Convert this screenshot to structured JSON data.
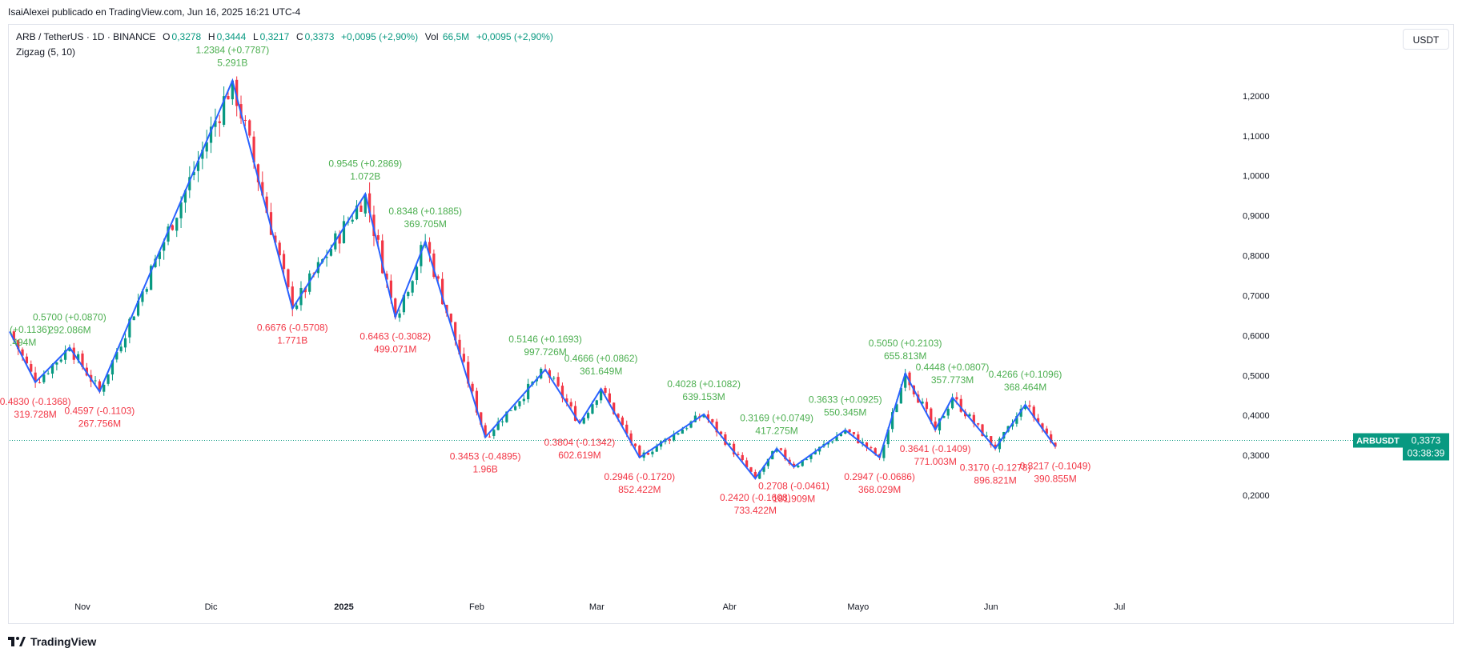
{
  "header": {
    "published": "IsaiAlexei publicado en TradingView.com, Jun 16, 2025 16:21 UTC-4",
    "symbol": "ARB / TetherUS · 1D · BINANCE",
    "o_label": "O",
    "o_value": "0,3278",
    "h_label": "H",
    "h_value": "0,3444",
    "l_label": "L",
    "l_value": "0,3217",
    "c_label": "C",
    "c_value": "0,3373",
    "change": "+0,0095 (+2,90%)",
    "vol_label": "Vol",
    "vol_value": "66,5M",
    "vol_change": "+0,0095 (+2,90%)",
    "indicator": "Zigzag (5, 10)",
    "currency": "USDT"
  },
  "price_tag": {
    "symbol": "ARBUSDT",
    "price": "0,3373",
    "countdown": "03:38:39"
  },
  "brand": "TradingView",
  "colors": {
    "up": "#089981",
    "down": "#f23645",
    "zigzag": "#2962ff",
    "label_up": "#4caf50",
    "label_down": "#f23645"
  },
  "chart_data": {
    "type": "candlestick",
    "ylim": [
      0.15,
      1.3
    ],
    "y_ticks": [
      {
        "value": 0.2,
        "label": "0,2000"
      },
      {
        "value": 0.3,
        "label": "0,3000"
      },
      {
        "value": 0.4,
        "label": "0,4000"
      },
      {
        "value": 0.5,
        "label": "0,5000"
      },
      {
        "value": 0.6,
        "label": "0,6000"
      },
      {
        "value": 0.7,
        "label": "0,7000"
      },
      {
        "value": 0.8,
        "label": "0,8000"
      },
      {
        "value": 0.9,
        "label": "0,9000"
      },
      {
        "value": 1.0,
        "label": "1,0000"
      },
      {
        "value": 1.1,
        "label": "1,1000"
      },
      {
        "value": 1.2,
        "label": "1,2000"
      }
    ],
    "x_range": [
      "2024-10-15",
      "2025-07-20"
    ],
    "x_ticks": [
      {
        "date": "2024-11-01",
        "label": "Nov"
      },
      {
        "date": "2024-12-01",
        "label": "Dic"
      },
      {
        "date": "2025-01-01",
        "label": "2025"
      },
      {
        "date": "2025-02-01",
        "label": "Feb"
      },
      {
        "date": "2025-03-01",
        "label": "Mar"
      },
      {
        "date": "2025-04-01",
        "label": "Abr"
      },
      {
        "date": "2025-05-01",
        "label": "Mayo"
      },
      {
        "date": "2025-06-01",
        "label": "Jun"
      },
      {
        "date": "2025-07-01",
        "label": "Jul"
      }
    ],
    "last_price": 0.3373,
    "zigzag": [
      {
        "date": "2024-10-15",
        "price": 0.61
      },
      {
        "date": "2024-10-21",
        "price": 0.483,
        "label": "0.4830 (-0.1368)",
        "volume": "319.728M",
        "dir": "down"
      },
      {
        "date": "2024-10-29",
        "price": 0.57,
        "label": "0.5700 (+0.0870)",
        "volume": "292.086M",
        "dir": "up"
      },
      {
        "date": "2024-11-05",
        "price": 0.4597,
        "label": "0.4597 (-0.1103)",
        "volume": "267.756M",
        "dir": "down"
      },
      {
        "date": "2024-12-06",
        "price": 1.2384,
        "label": "1.2384 (+0.7787)",
        "volume": "5.291B",
        "dir": "up"
      },
      {
        "date": "2024-12-20",
        "price": 0.6676,
        "label": "0.6676 (-0.5708)",
        "volume": "1.771B",
        "dir": "down"
      },
      {
        "date": "2025-01-06",
        "price": 0.9545,
        "label": "0.9545 (+0.2869)",
        "volume": "1.072B",
        "dir": "up"
      },
      {
        "date": "2025-01-13",
        "price": 0.6463,
        "label": "0.6463 (-0.3082)",
        "volume": "499.071M",
        "dir": "down"
      },
      {
        "date": "2025-01-20",
        "price": 0.8348,
        "label": "0.8348 (+0.1885)",
        "volume": "369.705M",
        "dir": "up"
      },
      {
        "date": "2025-02-03",
        "price": 0.3453,
        "label": "0.3453 (-0.4895)",
        "volume": "1.96B",
        "dir": "down"
      },
      {
        "date": "2025-02-17",
        "price": 0.5146,
        "label": "0.5146 (+0.1693)",
        "volume": "997.726M",
        "dir": "up"
      },
      {
        "date": "2025-02-25",
        "price": 0.3804,
        "label": "0.3804 (-0.1342)",
        "volume": "602.619M",
        "dir": "down"
      },
      {
        "date": "2025-03-02",
        "price": 0.4666,
        "label": "0.4666 (+0.0862)",
        "volume": "361.649M",
        "dir": "up"
      },
      {
        "date": "2025-03-11",
        "price": 0.2946,
        "label": "0.2946 (-0.1720)",
        "volume": "852.422M",
        "dir": "down"
      },
      {
        "date": "2025-03-26",
        "price": 0.4028,
        "label": "0.4028 (+0.1082)",
        "volume": "639.153M",
        "dir": "up"
      },
      {
        "date": "2025-04-07",
        "price": 0.242,
        "label": "0.2420 (-0.1608)",
        "volume": "733.422M",
        "dir": "down"
      },
      {
        "date": "2025-04-12",
        "price": 0.3169,
        "label": "0.3169 (+0.0749)",
        "volume": "417.275M",
        "dir": "up"
      },
      {
        "date": "2025-04-16",
        "price": 0.2708,
        "label": "0.2708 (-0.0461)",
        "volume": "181.909M",
        "dir": "down"
      },
      {
        "date": "2025-04-28",
        "price": 0.3633,
        "label": "0.3633 (+0.0925)",
        "volume": "550.345M",
        "dir": "up"
      },
      {
        "date": "2025-05-06",
        "price": 0.2947,
        "label": "0.2947 (-0.0686)",
        "volume": "368.029M",
        "dir": "down"
      },
      {
        "date": "2025-05-12",
        "price": 0.505,
        "label": "0.5050 (+0.2103)",
        "volume": "655.813M",
        "dir": "up"
      },
      {
        "date": "2025-05-19",
        "price": 0.3641,
        "label": "0.3641 (-0.1409)",
        "volume": "771.003M",
        "dir": "down"
      },
      {
        "date": "2025-05-23",
        "price": 0.4448,
        "label": "0.4448 (+0.0807)",
        "volume": "357.773M",
        "dir": "up"
      },
      {
        "date": "2025-06-02",
        "price": 0.317,
        "label": "0.3170 (-0.1278)",
        "volume": "896.821M",
        "dir": "down"
      },
      {
        "date": "2025-06-09",
        "price": 0.4266,
        "label": "0.4266 (+0.1096)",
        "volume": "368.464M",
        "dir": "up"
      },
      {
        "date": "2025-06-16",
        "price": 0.3217,
        "label": "0.3217 (-0.1049)",
        "volume": "390.855M",
        "dir": "down"
      }
    ],
    "partial_label_top": "(+0.1136)",
    "partial_label_bottom": ".494M"
  }
}
